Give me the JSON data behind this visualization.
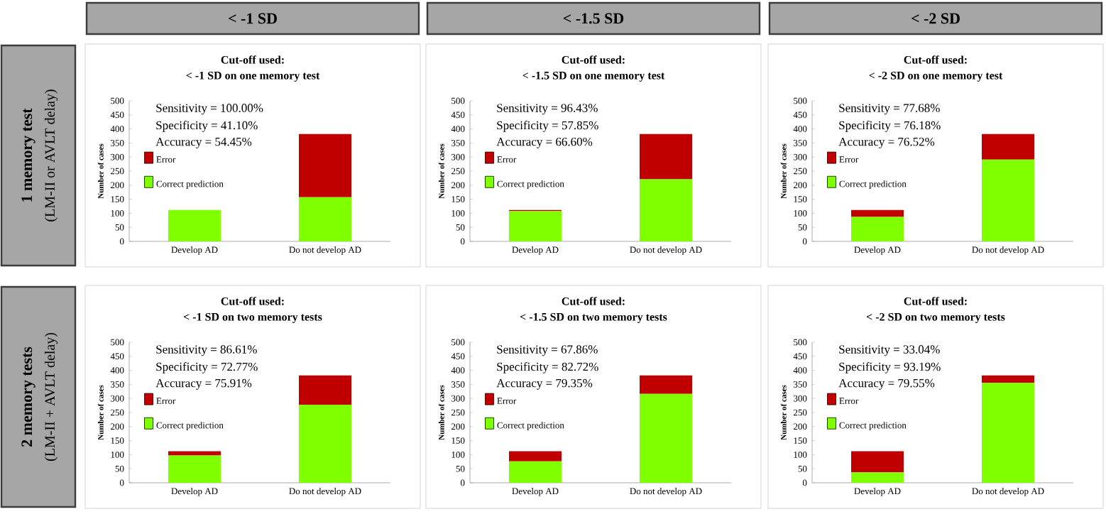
{
  "chart_data": [
    {
      "type": "bar",
      "title": "Cut-off used:",
      "subtitle": "< -1 SD on one memory test",
      "ylabel": "Number of cases",
      "categories": [
        "Develop AD",
        "Do not develop AD"
      ],
      "stacked": true,
      "legend": "left",
      "ylim": [
        0,
        500
      ],
      "yticks": [
        0,
        50,
        100,
        150,
        200,
        250,
        300,
        350,
        400,
        450,
        500
      ],
      "series": [
        {
          "name": "Correct prediction",
          "color": "#80ff00",
          "values": [
            112,
            157
          ]
        },
        {
          "name": "Error",
          "color": "#c00000",
          "values": [
            0,
            225
          ]
        }
      ],
      "annotations": [
        "Sensitivity = 100.00%",
        "Specificity = 41.10%",
        "Accuracy = 54.45%"
      ]
    },
    {
      "type": "bar",
      "title": "Cut-off used:",
      "subtitle": "< -1.5 SD on one memory test",
      "ylabel": "Number of cases",
      "categories": [
        "Develop AD",
        "Do not develop AD"
      ],
      "stacked": true,
      "legend": "left",
      "ylim": [
        0,
        500
      ],
      "yticks": [
        0,
        50,
        100,
        150,
        200,
        250,
        300,
        350,
        400,
        450,
        500
      ],
      "series": [
        {
          "name": "Correct prediction",
          "color": "#80ff00",
          "values": [
            108,
            221
          ]
        },
        {
          "name": "Error",
          "color": "#c00000",
          "values": [
            4,
            161
          ]
        }
      ],
      "annotations": [
        "Sensitivity = 96.43%",
        "Specificity = 57.85%",
        "Accuracy = 66.60%"
      ]
    },
    {
      "type": "bar",
      "title": "Cut-off used:",
      "subtitle": "< -2 SD on one memory test",
      "ylabel": "Number of cases",
      "categories": [
        "Develop AD",
        "Do not develop AD"
      ],
      "stacked": true,
      "legend": "left",
      "ylim": [
        0,
        500
      ],
      "yticks": [
        0,
        50,
        100,
        150,
        200,
        250,
        300,
        350,
        400,
        450,
        500
      ],
      "series": [
        {
          "name": "Correct prediction",
          "color": "#80ff00",
          "values": [
            87,
            291
          ]
        },
        {
          "name": "Error",
          "color": "#c00000",
          "values": [
            25,
            91
          ]
        }
      ],
      "annotations": [
        "Sensitivity = 77.68%",
        "Specificity = 76.18%",
        "Accuracy = 76.52%"
      ]
    },
    {
      "type": "bar",
      "title": "Cut-off used:",
      "subtitle": "< -1 SD on two memory tests",
      "ylabel": "Number of cases",
      "categories": [
        "Develop AD",
        "Do not develop AD"
      ],
      "stacked": true,
      "legend": "left",
      "ylim": [
        0,
        500
      ],
      "yticks": [
        0,
        50,
        100,
        150,
        200,
        250,
        300,
        350,
        400,
        450,
        500
      ],
      "series": [
        {
          "name": "Correct prediction",
          "color": "#80ff00",
          "values": [
            97,
            278
          ]
        },
        {
          "name": "Error",
          "color": "#c00000",
          "values": [
            15,
            104
          ]
        }
      ],
      "annotations": [
        "Sensitivity = 86.61%",
        "Specificity = 72.77%",
        "Accuracy = 75.91%"
      ]
    },
    {
      "type": "bar",
      "title": "Cut-off used:",
      "subtitle": "< -1.5 SD on two memory tests",
      "ylabel": "Number of cases",
      "categories": [
        "Develop AD",
        "Do not develop AD"
      ],
      "stacked": true,
      "legend": "left",
      "ylim": [
        0,
        500
      ],
      "yticks": [
        0,
        50,
        100,
        150,
        200,
        250,
        300,
        350,
        400,
        450,
        500
      ],
      "series": [
        {
          "name": "Correct prediction",
          "color": "#80ff00",
          "values": [
            76,
            316
          ]
        },
        {
          "name": "Error",
          "color": "#c00000",
          "values": [
            36,
            66
          ]
        }
      ],
      "annotations": [
        "Sensitivity = 67.86%",
        "Specificity = 82.72%",
        "Accuracy = 79.35%"
      ]
    },
    {
      "type": "bar",
      "title": "Cut-off used:",
      "subtitle": "< -2 SD on two memory tests",
      "ylabel": "Number of cases",
      "categories": [
        "Develop AD",
        "Do not develop AD"
      ],
      "stacked": true,
      "legend": "left",
      "ylim": [
        0,
        500
      ],
      "yticks": [
        0,
        50,
        100,
        150,
        200,
        250,
        300,
        350,
        400,
        450,
        500
      ],
      "series": [
        {
          "name": "Correct prediction",
          "color": "#80ff00",
          "values": [
            37,
            356
          ]
        },
        {
          "name": "Error",
          "color": "#c00000",
          "values": [
            75,
            26
          ]
        }
      ],
      "annotations": [
        "Sensitivity = 33.04%",
        "Specificity = 93.19%",
        "Accuracy = 79.55%"
      ]
    },
    {
      "type": "other",
      "annotations": [
        "< -1 SD",
        "< -1.5 SD",
        "< -2 SD",
        "1 memory test",
        "(LM-II or AVLT delay)",
        "2 memory tests",
        "(LM-II + AVLT delay)"
      ]
    }
  ]
}
